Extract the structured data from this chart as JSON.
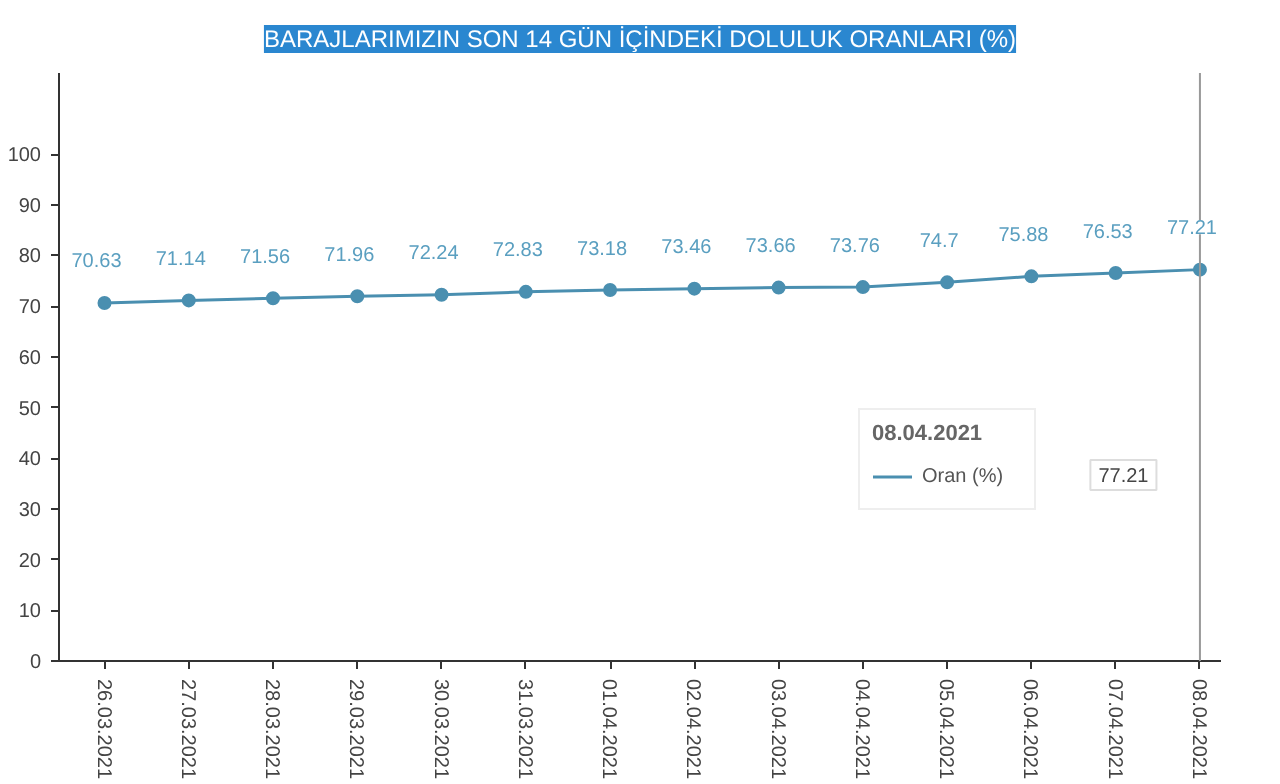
{
  "chart_data": {
    "type": "line",
    "title": "BARAJLARIMIZIN SON 14 GÜN İÇİNDEKİ DOLULUK ORANLARI (%)",
    "categories": [
      "26.03.2021",
      "27.03.2021",
      "28.03.2021",
      "29.03.2021",
      "30.03.2021",
      "31.03.2021",
      "01.04.2021",
      "02.04.2021",
      "03.04.2021",
      "04.04.2021",
      "05.04.2021",
      "06.04.2021",
      "07.04.2021",
      "08.04.2021"
    ],
    "series": [
      {
        "name": "Oran (%)",
        "color": "#4a8fb0",
        "values": [
          70.63,
          71.14,
          71.56,
          71.96,
          72.24,
          72.83,
          73.18,
          73.46,
          73.66,
          73.76,
          74.7,
          75.88,
          76.53,
          77.21
        ]
      }
    ],
    "data_labels": true,
    "marker": "circle",
    "grid": false,
    "legend": "right",
    "legend_title": "08.04.2021",
    "ylim": [
      0,
      116
    ],
    "yticks": [
      0,
      10,
      20,
      30,
      40,
      50,
      60,
      70,
      80,
      90,
      100
    ],
    "ref_lines": [
      {
        "axis": "x",
        "value": "08.04.2021",
        "label": null,
        "color": "#999999"
      }
    ],
    "annotations": [
      "77.21"
    ]
  }
}
